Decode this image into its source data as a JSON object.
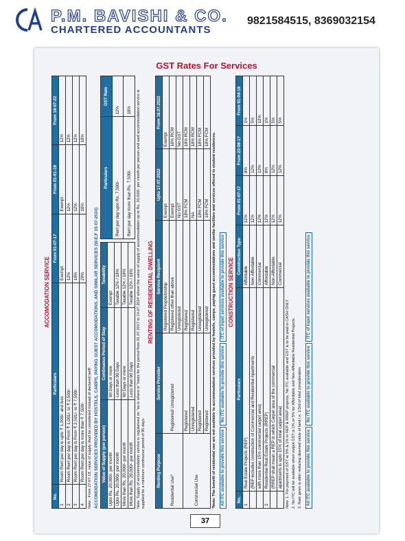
{
  "header": {
    "logo_letters": "CA",
    "firm_name": "P.M. BAVISHI & CO.",
    "firm_subtitle": "CHARTERED ACCOUNTANTS",
    "phones": "9821584515, 8369032154"
  },
  "page": {
    "title": "GST Rates For Services",
    "number": "37"
  },
  "accommodation": {
    "title": "ACCOMODATION SERVICE",
    "headers": [
      "No.",
      "Particulars",
      "From 01-07-17",
      "From 01-01-19",
      "From 18-07-22"
    ],
    "rows": [
      [
        "1",
        "Room Rent per day is upto ₹ 1,000/- and less",
        "Exempt",
        "Exempt",
        "12%"
      ],
      [
        "2",
        "Room Rent per day is From ₹ 1,001/- to ₹ 2,500/-",
        "12%",
        "12%",
        "12%"
      ],
      [
        "3",
        "Room Rent per day is From ₹ 2,501/- to ₹ 7,500/-",
        "18%",
        "12%",
        "12%"
      ],
      [
        "4",
        "Room Rent per day is more than ₹ 7,500/-",
        "28%",
        "18%",
        "18%"
      ]
    ],
    "note": "Note : From 27-07-18, value of supply shall be considered instead of declared tariff",
    "sub_title": "ACCOMODATION SERVICES PROVIDED BY HOSTELS, CAMPS, PAYING GUEST ACCOMODATIONS, AND SIMILAR SERVICES (W.E.F 15-07-2024)",
    "sub_headers": [
      "Value of Supply (per person)",
      "Continuous Period of Stay",
      "Taxability"
    ],
    "sub_rows": [
      [
        "Upto Rs. 20,000/- per month",
        "90 Days or more",
        "Exempt"
      ],
      [
        "Upto Rs. 20,000/- per month",
        "Less than 90 Days",
        "Taxable 12% / 18%"
      ],
      [
        "More than Rs. 20,000/- per month",
        "90 Days or more",
        "Taxable 12% / 18%"
      ],
      [
        "More than Rs. 20,000/- per month",
        "Less than 90 Days",
        "Taxable 12% / 18%"
      ]
    ],
    "rate_headers": [
      "Particulars",
      "GST Rate"
    ],
    "rate_rows": [
      [
        "Rent per day upto Rs. 7,500/-",
        "12%"
      ],
      [
        "Rent per day more than Rs. 7,500/-",
        "18%"
      ]
    ],
    "bottom_note": "Note: Supply of accommodation service is regularized on \"as is where is\" basis for the period from 01.07.2017 to 14.07.2024 where the value of supply of accommodation up to Rs. 20,000/- per month per person and said accommodation service is supplied for a minimum continuous period of 90 days."
  },
  "renting": {
    "title": "RENTING OF RESIDENTIAL DWELLING",
    "headers": [
      "Renting Purpose",
      "Service Provider",
      "Service Recipient",
      "Upto 17.07.2022",
      "From 18.07.2022"
    ],
    "rows": [
      [
        "Residential Use*",
        "Registered/ Unregistered",
        "Registered Proprietorship",
        "Exempt",
        "Exempt"
      ],
      [
        "",
        "",
        "Registered other than above",
        "Exempt",
        "18% RCM"
      ],
      [
        "",
        "",
        "Unregistered",
        "No GST",
        "No GST"
      ],
      [
        "Commercial Use",
        "Registered",
        "Registered",
        "18% FCM",
        "18% RCM"
      ],
      [
        "",
        "Unregistered",
        "Registered",
        "NA",
        "18% RCM"
      ],
      [
        "",
        "Registered",
        "Unregistered",
        "18% FCM",
        "18% FCM"
      ],
      [
        "",
        "Registered",
        "Unregistered",
        "18% FCM",
        "18% FCM"
      ]
    ],
    "note": "*Note: The benefit of residential use are not available to accommodation services provided by hostels, camps, paying guest accommodations and similar facilities and services offered to student residences."
  },
  "itc": {
    "all": "All ITC available to provide this service",
    "no": "No ITC available to provide this service",
    "inputs": "ITC of input services available to provide this service"
  },
  "construction": {
    "title": "CONSTRUCTION SERVICE",
    "headers": [
      "No.",
      "Particulars",
      "Construction Type",
      "From 01-07-17",
      "From 22-08-17",
      "From 01-04-19"
    ],
    "rows": [
      [
        "1",
        "Real Estate Projects (REP)",
        "Affordable",
        "12%",
        "8%",
        "1%"
      ],
      [
        "",
        "(REP includes construction of Commercial and Residential Apartments",
        "Non-Affordable",
        "12%",
        "12%",
        "5%"
      ],
      [
        "",
        "with more than 15% commercial carpet area)",
        "Commercial",
        "12%",
        "12%",
        "12%"
      ],
      [
        "2",
        "Residential Real Estate Projects (RREP)",
        "Affordable",
        "12%",
        "8%",
        "1%"
      ],
      [
        "",
        "(RREP shall mean a REP in which Carpet area of the commercial",
        "Non-Affordable",
        "12%",
        "12%",
        "5%"
      ],
      [
        "",
        "apartments is upto 15% of total carpet area)",
        "Commercial",
        "12%",
        "12%",
        "5%"
      ]
    ],
    "notes": [
      "Note: 1. For payment of GST at 5% & 1% in REP & RREP projects, No ITC available and GST is to be paid in CASH ONLY",
      "2. No ITC will be available when output GST is 1% or 5% for Affordable and Non-Affordable Residential Projects.",
      "3. Rate given is after reducing deemed value of land i.e. 1/3rd of total consideration"
    ]
  }
}
